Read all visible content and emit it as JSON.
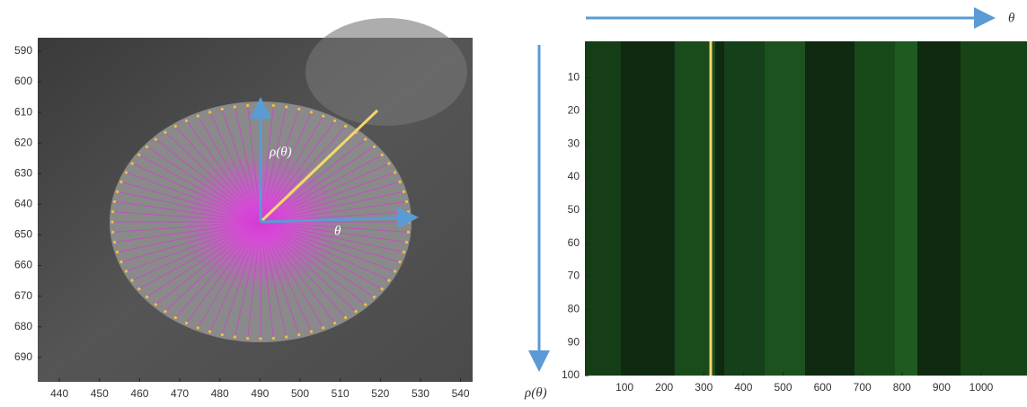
{
  "chart_data": [
    {
      "type": "image",
      "xlim": [
        434.6,
        543
      ],
      "ylim": [
        698,
        585.6
      ],
      "xticks": [
        440,
        450,
        460,
        470,
        480,
        490,
        500,
        510,
        520,
        530,
        540
      ],
      "yticks": [
        590,
        600,
        610,
        620,
        630,
        640,
        650,
        660,
        670,
        680,
        690
      ],
      "annotations": [
        "ρ(θ)",
        "θ"
      ]
    },
    {
      "type": "heatmap",
      "xlim": [
        0,
        1000
      ],
      "ylim": [
        100,
        -1
      ],
      "xticks": [
        100,
        200,
        300,
        400,
        500,
        600,
        700,
        800,
        900,
        1000
      ],
      "yticks": [
        10,
        20,
        30,
        40,
        50,
        60,
        70,
        80,
        90,
        100
      ],
      "annotations": [
        "θ",
        "ρ(θ)"
      ]
    }
  ]
}
